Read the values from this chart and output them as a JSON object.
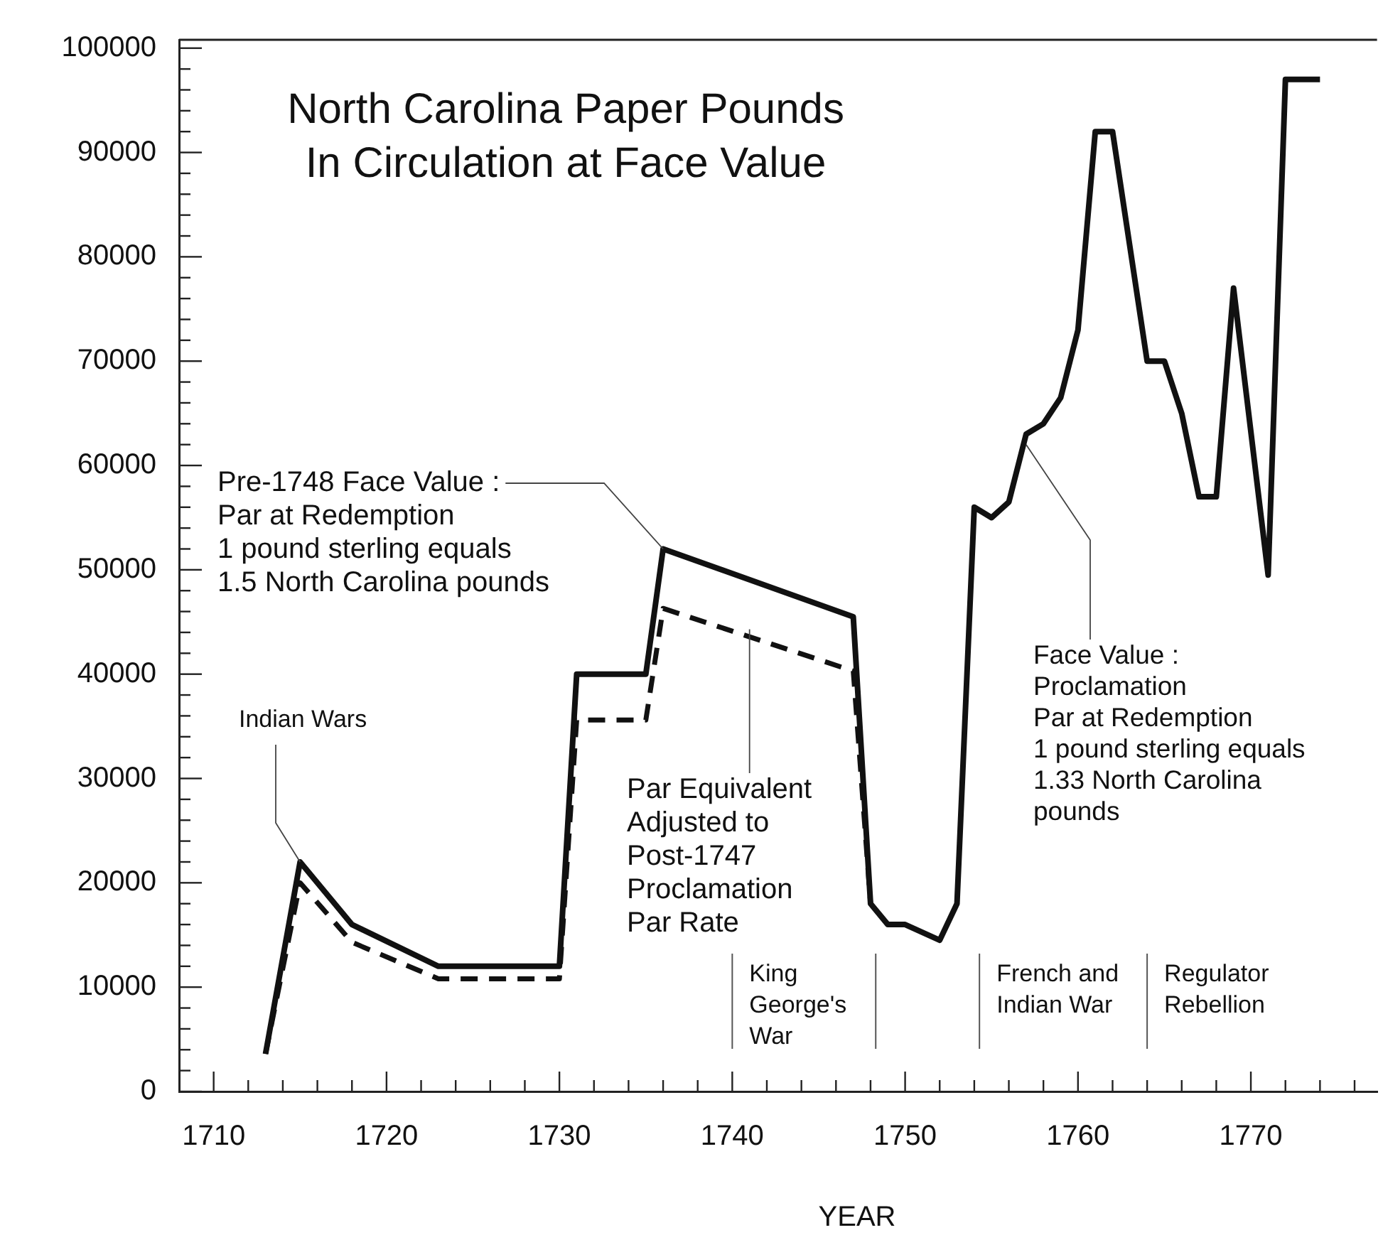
{
  "chart_data": {
    "type": "line",
    "title": "North Carolina Paper Pounds\nIn Circulation at Face Value",
    "xlabel": "YEAR",
    "xlim": [
      1708,
      1777.3
    ],
    "ylim": [
      0,
      100800
    ],
    "xticks": [
      1710,
      {
        "value": 1712,
        "label": null
      },
      {
        "value": 1714,
        "label": null
      },
      {
        "value": 1716,
        "label": null
      },
      {
        "value": 1718,
        "label": null
      },
      1720,
      {
        "value": 1722,
        "label": null
      },
      {
        "value": 1724,
        "label": null
      },
      {
        "value": 1726,
        "label": null
      },
      {
        "value": 1728,
        "label": null
      },
      1730,
      {
        "value": 1732,
        "label": null
      },
      {
        "value": 1734,
        "label": null
      },
      {
        "value": 1736,
        "label": null
      },
      {
        "value": 1738,
        "label": null
      },
      1740,
      {
        "value": 1742,
        "label": null
      },
      {
        "value": 1744,
        "label": null
      },
      {
        "value": 1746,
        "label": null
      },
      {
        "value": 1748,
        "label": null
      },
      1750,
      {
        "value": 1752,
        "label": null
      },
      {
        "value": 1754,
        "label": null
      },
      {
        "value": 1756,
        "label": null
      },
      {
        "value": 1758,
        "label": null
      },
      1760,
      {
        "value": 1762,
        "label": null
      },
      {
        "value": 1764,
        "label": null
      },
      {
        "value": 1766,
        "label": null
      },
      {
        "value": 1768,
        "label": null
      },
      1770,
      {
        "value": 1772,
        "label": null
      },
      {
        "value": 1774,
        "label": null
      },
      {
        "value": 1776,
        "label": null
      }
    ],
    "yticks": [
      0,
      {
        "value": 2000,
        "label": null
      },
      {
        "value": 4000,
        "label": null
      },
      {
        "value": 6000,
        "label": null
      },
      {
        "value": 8000,
        "label": null
      },
      10000,
      {
        "value": 12000,
        "label": null
      },
      {
        "value": 14000,
        "label": null
      },
      {
        "value": 16000,
        "label": null
      },
      {
        "value": 18000,
        "label": null
      },
      20000,
      {
        "value": 22000,
        "label": null
      },
      {
        "value": 24000,
        "label": null
      },
      {
        "value": 26000,
        "label": null
      },
      {
        "value": 28000,
        "label": null
      },
      30000,
      {
        "value": 32000,
        "label": null
      },
      {
        "value": 34000,
        "label": null
      },
      {
        "value": 36000,
        "label": null
      },
      {
        "value": 38000,
        "label": null
      },
      40000,
      {
        "value": 42000,
        "label": null
      },
      {
        "value": 44000,
        "label": null
      },
      {
        "value": 46000,
        "label": null
      },
      {
        "value": 48000,
        "label": null
      },
      50000,
      {
        "value": 52000,
        "label": null
      },
      {
        "value": 54000,
        "label": null
      },
      {
        "value": 56000,
        "label": null
      },
      {
        "value": 58000,
        "label": null
      },
      60000,
      {
        "value": 62000,
        "label": null
      },
      {
        "value": 64000,
        "label": null
      },
      {
        "value": 66000,
        "label": null
      },
      {
        "value": 68000,
        "label": null
      },
      70000,
      {
        "value": 72000,
        "label": null
      },
      {
        "value": 74000,
        "label": null
      },
      {
        "value": 76000,
        "label": null
      },
      {
        "value": 78000,
        "label": null
      },
      80000,
      {
        "value": 82000,
        "label": null
      },
      {
        "value": 84000,
        "label": null
      },
      {
        "value": 86000,
        "label": null
      },
      {
        "value": 88000,
        "label": null
      },
      90000,
      {
        "value": 92000,
        "label": null
      },
      {
        "value": 94000,
        "label": null
      },
      {
        "value": 96000,
        "label": null
      },
      {
        "value": 98000,
        "label": null
      },
      100000
    ],
    "grid": false,
    "legend": false,
    "marker": "none",
    "series": [
      {
        "color": "#111111",
        "line_style": "solid",
        "x": [
          1713,
          1715,
          1718,
          1723,
          1730,
          1731,
          1735,
          1736,
          1747,
          1748,
          1749,
          1750,
          1752,
          1753,
          1754,
          1755,
          1756,
          1757,
          1758,
          1759,
          1760,
          1761,
          1762,
          1764,
          1765,
          1766,
          1767,
          1768,
          1769,
          1771,
          1772,
          1774
        ],
        "values": [
          3600,
          22000,
          16000,
          12000,
          12000,
          40000,
          40000,
          52000,
          45500,
          18000,
          16000,
          16000,
          14500,
          18000,
          56000,
          55000,
          56500,
          63000,
          64000,
          66500,
          73000,
          92000,
          92000,
          70000,
          70000,
          65000,
          57000,
          57000,
          77000,
          49500,
          97000,
          97000
        ]
      },
      {
        "color": "#111111",
        "line_style": "dashed",
        "x": [
          1713,
          1715,
          1718,
          1723,
          1730,
          1731,
          1735,
          1736,
          1747,
          1748
        ],
        "values": [
          3600,
          20000,
          14300,
          10800,
          10800,
          35600,
          35600,
          46300,
          40300,
          18000
        ]
      }
    ],
    "ref_lines": [
      {
        "axis": "x",
        "value": 1740,
        "label": "King\nGeorge's\nWar"
      },
      {
        "axis": "x",
        "value": 1748.3
      },
      {
        "axis": "x",
        "value": 1754.3,
        "label": "French and\nIndian War"
      },
      {
        "axis": "x",
        "value": 1764,
        "label": "Regulator\nRebellion"
      }
    ],
    "annotations": [
      {
        "text": "Indian Wars",
        "x": 1715,
        "y": 22000
      },
      {
        "text": "Pre-1748 Face Value :\nPar at Redemption\n1 pound sterling equals\n1.5 North Carolina pounds",
        "x": 1736,
        "y": 52000
      },
      {
        "text": "Par Equivalent\nAdjusted to\nPost-1747\nProclamation\nPar Rate",
        "x": 1741,
        "y": 44300
      },
      {
        "text": "Face Value :\nProclamation\nPar at Redemption\n1 pound sterling equals\n1.33 North Carolina\npounds",
        "x": 1757,
        "y": 62000
      }
    ]
  }
}
